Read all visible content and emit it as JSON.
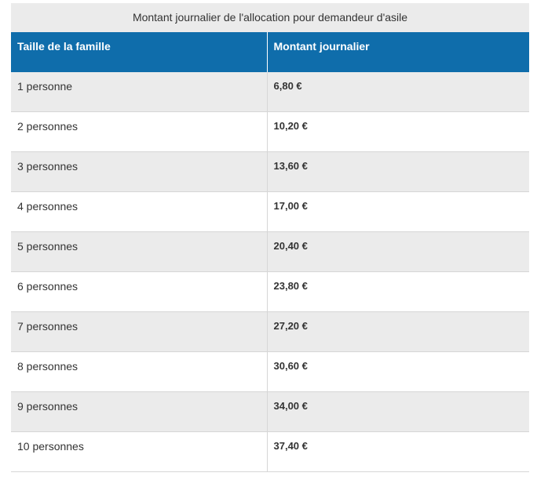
{
  "table": {
    "caption": "Montant journalier de l'allocation pour demandeur d'asile",
    "headers": [
      "Taille de la famille",
      "Montant journalier"
    ],
    "rows": [
      {
        "size": "1 personne",
        "amount": "6,80 €"
      },
      {
        "size": "2 personnes",
        "amount": "10,20 €"
      },
      {
        "size": "3 personnes",
        "amount": "13,60 €"
      },
      {
        "size": "4 personnes",
        "amount": "17,00 €"
      },
      {
        "size": "5 personnes",
        "amount": "20,40 €"
      },
      {
        "size": "6 personnes",
        "amount": "23,80 €"
      },
      {
        "size": "7 personnes",
        "amount": "27,20 €"
      },
      {
        "size": "8 personnes",
        "amount": "30,60 €"
      },
      {
        "size": "9 personnes",
        "amount": "34,00 €"
      },
      {
        "size": "10 personnes",
        "amount": "37,40 €"
      }
    ],
    "colors": {
      "header_bg": "#0f6dab",
      "header_text": "#ffffff",
      "caption_bg": "#ebebeb",
      "stripe_bg": "#ebebeb",
      "row_border": "#d6d6d6"
    }
  }
}
